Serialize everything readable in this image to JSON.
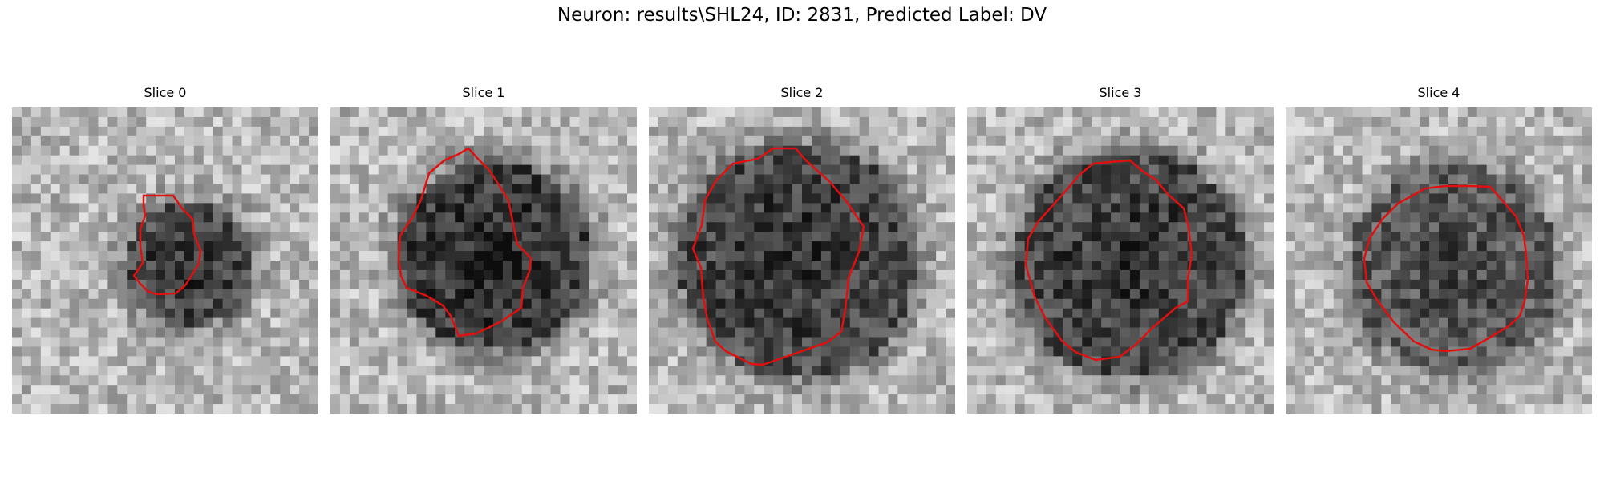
{
  "figure": {
    "suptitle": "Neuron: results\\SHL24, ID: 2831, Predicted Label: DV",
    "outline_color": "#e01010"
  },
  "panels": [
    {
      "title": "Slice 0",
      "image": "grayscale-tile-slice-0",
      "outline": "red-contour"
    },
    {
      "title": "Slice 1",
      "image": "grayscale-tile-slice-1",
      "outline": "red-contour"
    },
    {
      "title": "Slice 2",
      "image": "grayscale-tile-slice-2",
      "outline": "red-contour"
    },
    {
      "title": "Slice 3",
      "image": "grayscale-tile-slice-3",
      "outline": "red-contour"
    },
    {
      "title": "Slice 4",
      "image": "grayscale-tile-slice-4",
      "outline": "red-contour"
    }
  ]
}
